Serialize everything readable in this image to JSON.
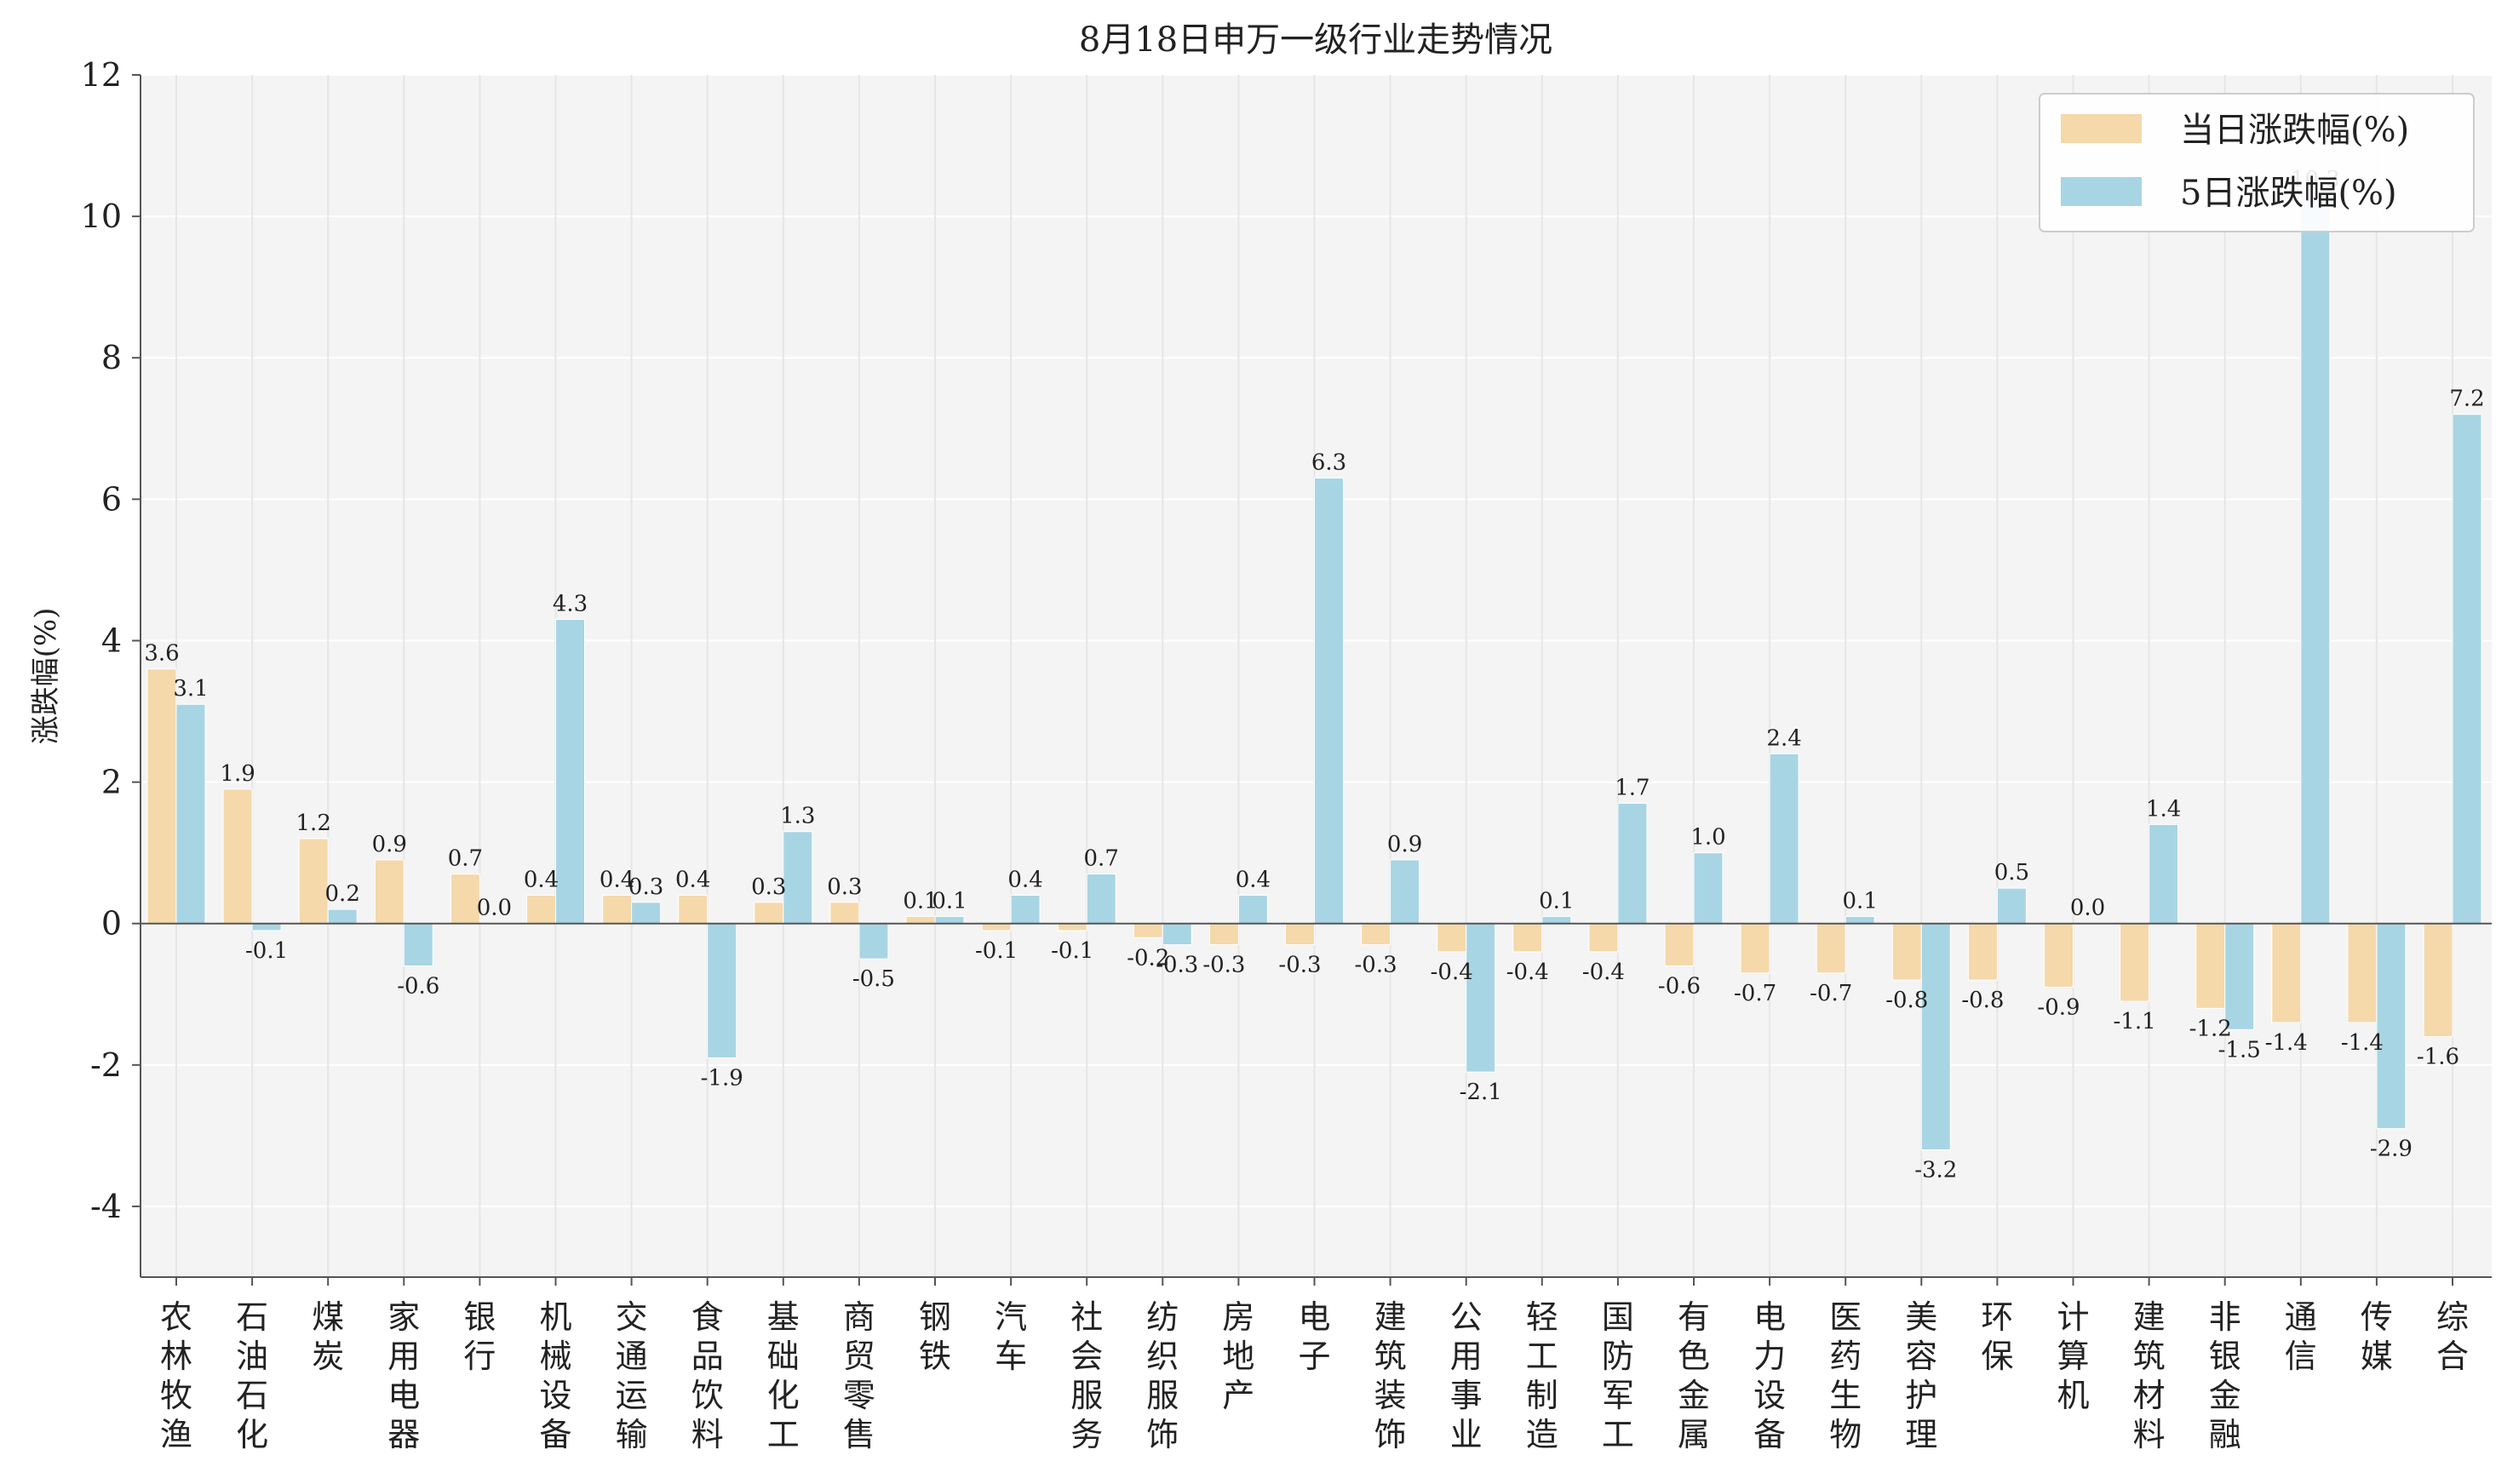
{
  "chart_data": {
    "type": "bar",
    "title": "8月18日申万一级行业走势情况",
    "xlabel": "",
    "ylabel": "涨跌幅(%)",
    "ylim": [
      -5,
      12
    ],
    "yticks": [
      -4,
      -2,
      0,
      2,
      4,
      6,
      8,
      10,
      12
    ],
    "grid": true,
    "legend_position": "top-right",
    "categories": [
      "农林牧渔",
      "石油石化",
      "煤炭",
      "家用电器",
      "银行",
      "机械设备",
      "交通运输",
      "食品饮料",
      "基础化工",
      "商贸零售",
      "钢铁",
      "汽车",
      "社会服务",
      "纺织服饰",
      "房地产",
      "电子",
      "建筑装饰",
      "公用事业",
      "轻工制造",
      "国防军工",
      "有色金属",
      "电力设备",
      "医药生物",
      "美容护理",
      "环保",
      "计算机",
      "建筑材料",
      "非银金融",
      "通信",
      "传媒",
      "综合"
    ],
    "series": [
      {
        "name": "当日涨跌幅(%)",
        "color": "#f5d9ab",
        "values": [
          3.6,
          1.9,
          1.2,
          0.9,
          0.7,
          0.4,
          0.4,
          0.4,
          0.3,
          0.3,
          0.1,
          -0.1,
          -0.1,
          -0.2,
          -0.3,
          -0.3,
          -0.3,
          -0.4,
          -0.4,
          -0.4,
          -0.6,
          -0.7,
          -0.7,
          -0.8,
          -0.8,
          -0.9,
          -1.1,
          -1.2,
          -1.4,
          -1.4,
          -1.6
        ],
        "labels": [
          "3.6",
          "1.9",
          "1.2",
          "0.9",
          "0.7",
          "0.4",
          "0.4",
          "0.4",
          "0.3",
          "0.3",
          "0.1",
          "-0.1",
          "-0.1",
          "-0.2",
          "-0.3",
          "-0.3",
          "-0.3",
          "-0.4",
          "-0.4",
          "-0.4",
          "-0.6",
          "-0.7",
          "-0.7",
          "-0.8",
          "-0.8",
          "-0.9",
          "-1.1",
          "-1.2",
          "-1.4",
          "-1.4",
          "-1.6"
        ]
      },
      {
        "name": "5日涨跌幅(%)",
        "color": "#a8d5e4",
        "values": [
          3.1,
          -0.1,
          0.2,
          -0.6,
          0.0,
          4.3,
          0.3,
          -1.9,
          1.3,
          -0.5,
          0.1,
          0.4,
          0.7,
          -0.3,
          0.4,
          6.3,
          0.9,
          -2.1,
          0.1,
          1.7,
          1.0,
          2.4,
          0.1,
          -3.2,
          0.5,
          0.0,
          1.4,
          -1.5,
          10.3,
          -2.9,
          7.2
        ],
        "labels": [
          "3.1",
          "-0.1",
          "0.2",
          "-0.6",
          "0.0",
          "4.3",
          "0.3",
          "-1.9",
          "1.3",
          "-0.5",
          "0.1",
          "0.4",
          "0.7",
          "-0.3",
          "0.4",
          "6.3",
          "0.9",
          "-2.1",
          "0.1",
          "1.7",
          "1.0",
          "2.4",
          "0.1",
          "-3.2",
          "0.5",
          "0.0",
          "1.4",
          "-1.5",
          "10.3",
          "-2.9",
          "7.2"
        ]
      }
    ]
  }
}
